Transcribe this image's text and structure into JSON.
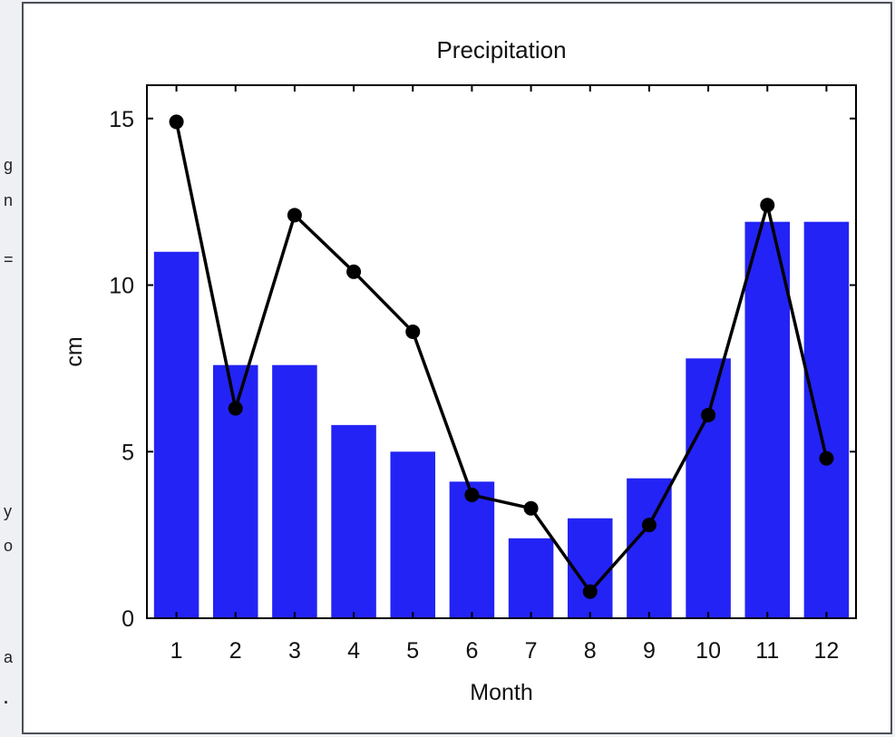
{
  "side_fragments": [
    "g",
    "n",
    "=",
    "y",
    "o",
    "a",
    "."
  ],
  "chart_data": {
    "type": "bar",
    "title": "Precipitation",
    "xlabel": "Month",
    "ylabel": "cm",
    "categories": [
      "1",
      "2",
      "3",
      "4",
      "5",
      "6",
      "7",
      "8",
      "9",
      "10",
      "11",
      "12"
    ],
    "series": [
      {
        "kind": "bar",
        "values": [
          11.0,
          7.6,
          7.6,
          5.8,
          5.0,
          4.1,
          2.4,
          3.0,
          4.2,
          7.8,
          11.9,
          11.9
        ]
      },
      {
        "kind": "line",
        "values": [
          14.9,
          6.3,
          12.1,
          10.4,
          8.6,
          3.7,
          3.3,
          0.8,
          2.8,
          6.1,
          12.4,
          4.8
        ]
      }
    ],
    "ylim": [
      0,
      16
    ],
    "yticks": [
      0,
      5,
      10,
      15
    ],
    "grid": false,
    "colors": {
      "bar": "#2323f5",
      "line": "#000000"
    }
  }
}
